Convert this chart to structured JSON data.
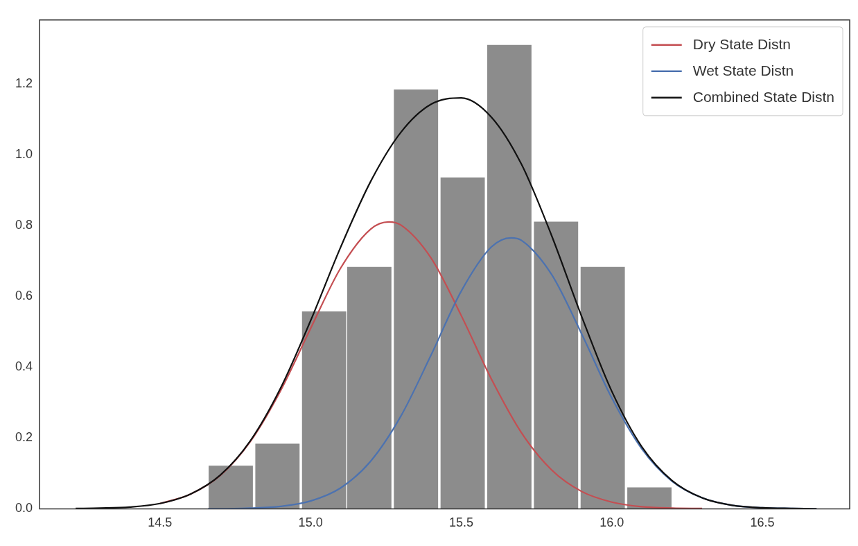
{
  "chart_data": {
    "type": "histogram",
    "bins": [
      14.66,
      14.81,
      14.97,
      15.12,
      15.27,
      15.43,
      15.58,
      15.74,
      15.89,
      16.05,
      16.2
    ],
    "values": [
      0.123,
      0.185,
      0.559,
      0.684,
      1.185,
      0.937,
      1.311,
      0.812,
      0.684,
      0.062
    ],
    "color": "#8c8c8c",
    "series": [
      {
        "name": "Dry State Distn",
        "type": "line",
        "color": "#c44e52",
        "x": [
          14.5,
          14.6,
          14.7,
          14.8,
          14.9,
          15.0,
          15.1,
          15.2,
          15.26,
          15.3,
          15.4,
          15.5,
          15.6,
          15.7,
          15.8,
          15.9,
          16.0,
          16.1,
          16.2,
          16.3
        ],
        "values": [
          0.015,
          0.041,
          0.094,
          0.19,
          0.333,
          0.509,
          0.68,
          0.79,
          0.81,
          0.801,
          0.708,
          0.546,
          0.367,
          0.215,
          0.11,
          0.049,
          0.019,
          0.006,
          0.002,
          0.001
        ]
      },
      {
        "name": "Wet State Distn",
        "type": "line",
        "color": "#4c72b0",
        "x": [
          14.66,
          14.7,
          14.8,
          14.9,
          15.0,
          15.1,
          15.2,
          15.3,
          15.4,
          15.5,
          15.6,
          15.666,
          15.7,
          15.8,
          15.9,
          16.0,
          16.1,
          16.2,
          16.3,
          16.4,
          16.5,
          16.6,
          16.68
        ],
        "values": [
          0.0,
          0.0,
          0.002,
          0.007,
          0.022,
          0.059,
          0.135,
          0.262,
          0.434,
          0.614,
          0.739,
          0.765,
          0.758,
          0.662,
          0.494,
          0.313,
          0.169,
          0.078,
          0.031,
          0.01,
          0.003,
          0.001,
          0.0
        ]
      },
      {
        "name": "Combined State Distn",
        "type": "line",
        "color": "#111111",
        "x": [
          14.22,
          14.3,
          14.4,
          14.5,
          14.6,
          14.7,
          14.8,
          14.9,
          15.0,
          15.1,
          15.2,
          15.3,
          15.4,
          15.5,
          15.6,
          15.7,
          15.8,
          15.9,
          16.0,
          16.1,
          16.2,
          16.3,
          16.4,
          16.5,
          16.6,
          16.68
        ],
        "values": [
          0.001,
          0.002,
          0.005,
          0.015,
          0.041,
          0.095,
          0.192,
          0.34,
          0.531,
          0.739,
          0.925,
          1.063,
          1.142,
          1.16,
          1.106,
          0.973,
          0.772,
          0.543,
          0.332,
          0.175,
          0.08,
          0.031,
          0.01,
          0.003,
          0.001,
          0.0
        ]
      }
    ],
    "xlim": [
      14.1,
      16.79
    ],
    "ylim": [
      0,
      1.38
    ],
    "xticks": [
      14.5,
      {
        "value": 15,
        "label": "15.0"
      },
      15.5,
      {
        "value": 16,
        "label": "16.0"
      },
      16.5
    ],
    "yticks": [
      {
        "value": 0,
        "label": "0.0"
      },
      0.2,
      0.4,
      0.6,
      0.8,
      {
        "value": 1,
        "label": "1.0"
      },
      1.2
    ],
    "grid": false,
    "legend": "top right",
    "marker": "none",
    "line_style": "solid"
  }
}
